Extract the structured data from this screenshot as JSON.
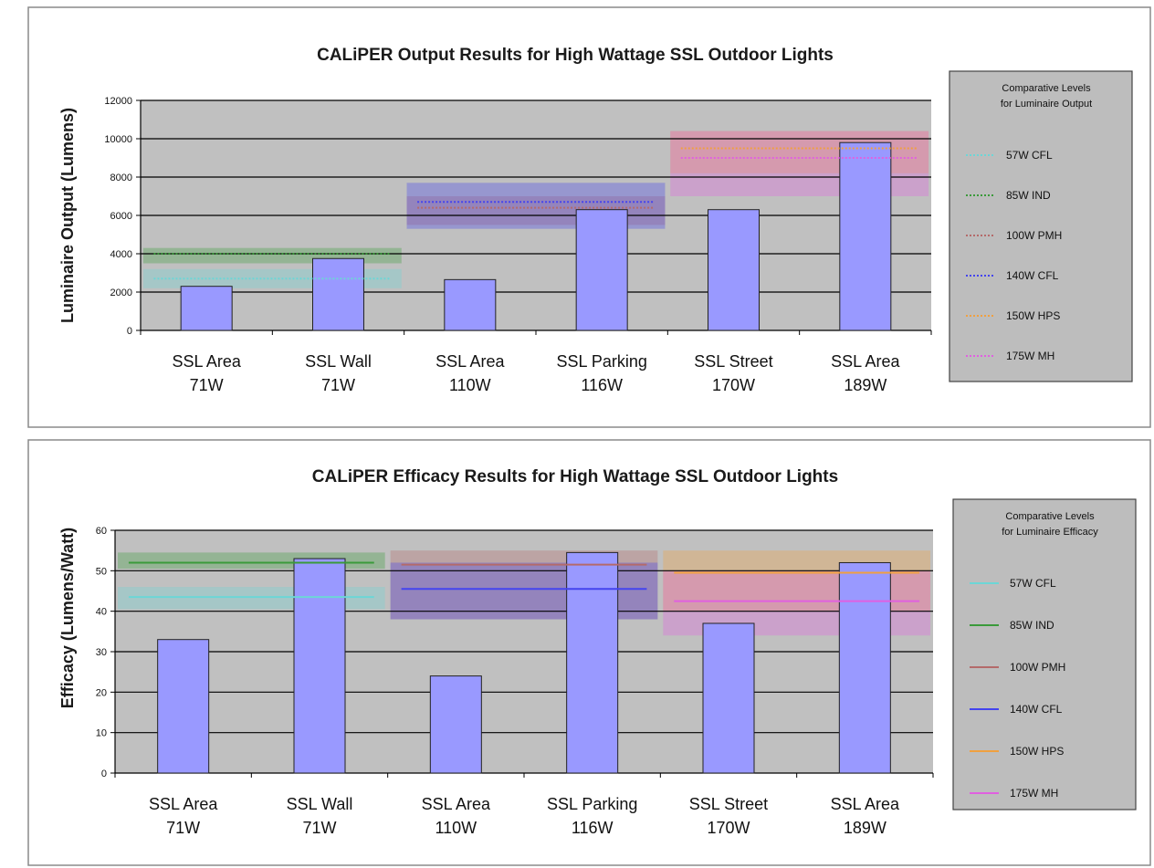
{
  "chart_data": [
    {
      "type": "bar",
      "title": "CALiPER Output Results for High Wattage SSL Outdoor Lights",
      "xlabel": "",
      "ylabel": "Luminaire Output (Lumens)",
      "ylim": [
        0,
        12000
      ],
      "yticks": [
        "0",
        "2000",
        "4000",
        "6000",
        "8000",
        "10000",
        "12000"
      ],
      "grid": true,
      "categories": [
        [
          "SSL Area",
          "71W"
        ],
        [
          "SSL Wall",
          "71W"
        ],
        [
          "SSL Area",
          "110W"
        ],
        [
          "SSL Parking",
          "116W"
        ],
        [
          "SSL Street",
          "170W"
        ],
        [
          "SSL Area",
          "189W"
        ]
      ],
      "values": [
        2300,
        3750,
        2650,
        6300,
        6300,
        9800
      ],
      "legend": {
        "title": [
          "Comparative Levels",
          "for Luminaire Output"
        ],
        "placement": "right",
        "line_style": "dotted",
        "entries": [
          {
            "label": "57W CFL",
            "color": "#6cd6d6"
          },
          {
            "label": "85W  IND",
            "color": "#3a9a3a"
          },
          {
            "label": "100W PMH",
            "color": "#b46a6a"
          },
          {
            "label": "140W CFL",
            "color": "#4444ee"
          },
          {
            "label": "150W HPS",
            "color": "#f0a040"
          },
          {
            "label": "175W MH",
            "color": "#e060e0"
          }
        ]
      },
      "comparative_levels": [
        {
          "level": "57W CFL",
          "group": [
            0,
            1
          ],
          "value": 2700,
          "band": [
            2200,
            3200
          ],
          "color": "#6cd6d6"
        },
        {
          "level": "85W  IND",
          "group": [
            0,
            1
          ],
          "value": 4000,
          "band": [
            3500,
            4300
          ],
          "color": "#3a9a3a"
        },
        {
          "level": "100W PMH",
          "group": [
            2,
            3
          ],
          "value": 6400,
          "band": [
            5500,
            7000
          ],
          "color": "#b46a6a"
        },
        {
          "level": "140W CFL",
          "group": [
            2,
            3
          ],
          "value": 6700,
          "band": [
            5300,
            7700
          ],
          "color": "#4444ee"
        },
        {
          "level": "150W HPS",
          "group": [
            4,
            5
          ],
          "value": 9500,
          "band": [
            8200,
            10400
          ],
          "color": "#f0a040"
        },
        {
          "level": "175W MH",
          "group": [
            4,
            5
          ],
          "value": 9000,
          "band": [
            7000,
            10400
          ],
          "color": "#e060e0"
        }
      ]
    },
    {
      "type": "bar",
      "title": "CALiPER Efficacy Results for High Wattage SSL Outdoor Lights",
      "xlabel": "",
      "ylabel": "Efficacy (Lumens/Watt)",
      "ylim": [
        0,
        60
      ],
      "yticks": [
        "0",
        "10",
        "20",
        "30",
        "40",
        "50",
        "60"
      ],
      "grid": true,
      "categories": [
        [
          "SSL Area",
          "71W"
        ],
        [
          "SSL Wall",
          "71W"
        ],
        [
          "SSL Area",
          "110W"
        ],
        [
          "SSL Parking",
          "116W"
        ],
        [
          "SSL Street",
          "170W"
        ],
        [
          "SSL Area",
          "189W"
        ]
      ],
      "values": [
        33,
        53,
        24,
        54.5,
        37,
        52
      ],
      "legend": {
        "title": [
          "Comparative Levels",
          "for Luminaire Efficacy"
        ],
        "placement": "right",
        "line_style": "solid",
        "entries": [
          {
            "label": "57W CFL",
            "color": "#6cd6d6"
          },
          {
            "label": "85W  IND",
            "color": "#3a9a3a"
          },
          {
            "label": "100W PMH",
            "color": "#b46a6a"
          },
          {
            "label": "140W CFL",
            "color": "#4444ee"
          },
          {
            "label": "150W HPS",
            "color": "#f0a040"
          },
          {
            "label": "175W MH",
            "color": "#e060e0"
          }
        ]
      },
      "comparative_levels": [
        {
          "level": "57W CFL",
          "group": [
            0,
            1
          ],
          "value": 43.5,
          "band": [
            40.5,
            46
          ],
          "color": "#6cd6d6"
        },
        {
          "level": "85W  IND",
          "group": [
            0,
            1
          ],
          "value": 52,
          "band": [
            50.5,
            54.5
          ],
          "color": "#3a9a3a"
        },
        {
          "level": "100W PMH",
          "group": [
            2,
            3
          ],
          "value": 51.5,
          "band": [
            38,
            55
          ],
          "color": "#b46a6a"
        },
        {
          "level": "140W CFL",
          "group": [
            2,
            3
          ],
          "value": 45.5,
          "band": [
            38,
            52
          ],
          "color": "#4444ee"
        },
        {
          "level": "150W HPS",
          "group": [
            4,
            5
          ],
          "value": 49.5,
          "band": [
            40,
            55
          ],
          "color": "#f0a040"
        },
        {
          "level": "175W MH",
          "group": [
            4,
            5
          ],
          "value": 42.5,
          "band": [
            34,
            50
          ],
          "color": "#e060e0"
        }
      ]
    }
  ]
}
